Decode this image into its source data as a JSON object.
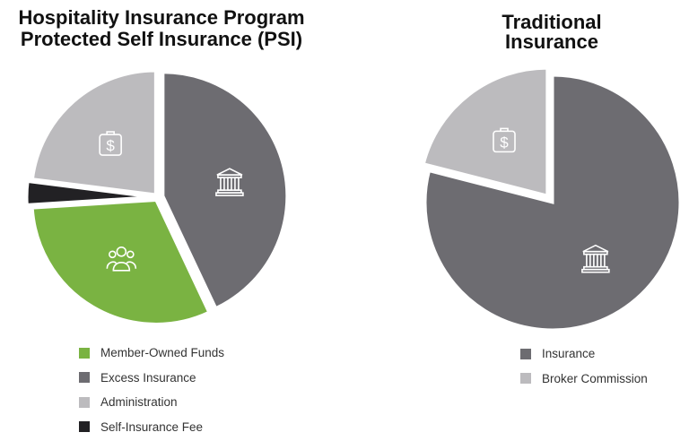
{
  "chart_data": [
    {
      "type": "pie",
      "title": "Hospitality Insurance Program Protected Self Insurance (PSI)",
      "title_lines": [
        "Hospitality Insurance Program",
        "Protected Self Insurance (PSI)"
      ],
      "slices": [
        {
          "label": "Excess Insurance",
          "value": 43,
          "color": "#6d6c71",
          "icon": "bank-icon"
        },
        {
          "label": "Member-Owned Funds",
          "value": 31,
          "color": "#7ab342",
          "icon": "group-icon"
        },
        {
          "label": "Self-Insurance Fee",
          "value": 3,
          "color": "#222124",
          "icon": ""
        },
        {
          "label": "Administration",
          "value": 23,
          "color": "#bcbbbe",
          "icon": "briefcase-dollar-icon"
        }
      ],
      "legend_order": [
        "Member-Owned Funds",
        "Excess Insurance",
        "Administration",
        "Self-Insurance Fee"
      ],
      "legend_position": "bottom"
    },
    {
      "type": "pie",
      "title": "Traditional Insurance",
      "title_lines": [
        "Traditional",
        "Insurance"
      ],
      "slices": [
        {
          "label": "Insurance",
          "value": 79,
          "color": "#6d6c71",
          "icon": "bank-icon"
        },
        {
          "label": "Broker Commission",
          "value": 21,
          "color": "#bcbbbe",
          "icon": "briefcase-dollar-icon"
        }
      ],
      "legend_order": [
        "Insurance",
        "Broker Commission"
      ],
      "legend_position": "bottom"
    }
  ]
}
